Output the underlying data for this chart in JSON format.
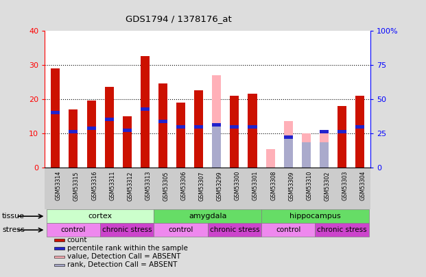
{
  "title": "GDS1794 / 1378176_at",
  "samples": [
    "GSM53314",
    "GSM53315",
    "GSM53316",
    "GSM53311",
    "GSM53312",
    "GSM53313",
    "GSM53305",
    "GSM53306",
    "GSM53307",
    "GSM53299",
    "GSM53300",
    "GSM53301",
    "GSM53308",
    "GSM53309",
    "GSM53310",
    "GSM53302",
    "GSM53303",
    "GSM53304"
  ],
  "red_bars": [
    29,
    17,
    19.5,
    23.5,
    15,
    32.5,
    24.5,
    19,
    22.5,
    0,
    21,
    21.5,
    0,
    0,
    0,
    0,
    18,
    21
  ],
  "blue_markers": [
    16,
    10.5,
    11.5,
    14,
    11,
    17,
    13.5,
    12,
    12,
    12.5,
    12,
    12,
    0,
    9,
    0,
    10.5,
    10.5,
    12
  ],
  "pink_bars": [
    0,
    0,
    0,
    0,
    0,
    0,
    0,
    0,
    0,
    27,
    0,
    0,
    5.5,
    13.5,
    10,
    10,
    0,
    0
  ],
  "lavender_bars": [
    0,
    0,
    0,
    0,
    0,
    0,
    0,
    0,
    0,
    13,
    0,
    0,
    0,
    9,
    7.5,
    7.5,
    0,
    0
  ],
  "ylim_left": [
    0,
    40
  ],
  "ylim_right": [
    0,
    100
  ],
  "yticks_left": [
    0,
    10,
    20,
    30,
    40
  ],
  "yticks_right": [
    0,
    25,
    50,
    75,
    100
  ],
  "ytick_labels_right": [
    "0",
    "25",
    "50",
    "75",
    "100%"
  ],
  "bar_width": 0.5,
  "bar_color_red": "#CC1100",
  "bar_color_pink": "#FFB0B8",
  "bar_color_blue": "#2222CC",
  "bar_color_lavender": "#AAAACC",
  "tissue_groups": [
    {
      "label": "cortex",
      "start": 0,
      "end": 5,
      "color": "#CCFFCC"
    },
    {
      "label": "amygdala",
      "start": 6,
      "end": 11,
      "color": "#66DD66"
    },
    {
      "label": "hippocampus",
      "start": 12,
      "end": 17,
      "color": "#66DD66"
    }
  ],
  "stress_groups": [
    {
      "label": "control",
      "start": 0,
      "end": 2,
      "color": "#EE88EE"
    },
    {
      "label": "chronic stress",
      "start": 3,
      "end": 5,
      "color": "#CC44CC"
    },
    {
      "label": "control",
      "start": 6,
      "end": 8,
      "color": "#EE88EE"
    },
    {
      "label": "chronic stress",
      "start": 9,
      "end": 11,
      "color": "#CC44CC"
    },
    {
      "label": "control",
      "start": 12,
      "end": 14,
      "color": "#EE88EE"
    },
    {
      "label": "chronic stress",
      "start": 15,
      "end": 17,
      "color": "#CC44CC"
    }
  ],
  "legend_items": [
    {
      "label": "count",
      "color": "#CC1100",
      "marker": "square"
    },
    {
      "label": "percentile rank within the sample",
      "color": "#2222CC",
      "marker": "square"
    },
    {
      "label": "value, Detection Call = ABSENT",
      "color": "#FFB0B8",
      "marker": "square"
    },
    {
      "label": "rank, Detection Call = ABSENT",
      "color": "#AAAACC",
      "marker": "square"
    }
  ],
  "grid_color": "black",
  "bg_color": "#DDDDDD",
  "plot_bg": "#FFFFFF",
  "xticklabels_bg": "#CCCCCC"
}
